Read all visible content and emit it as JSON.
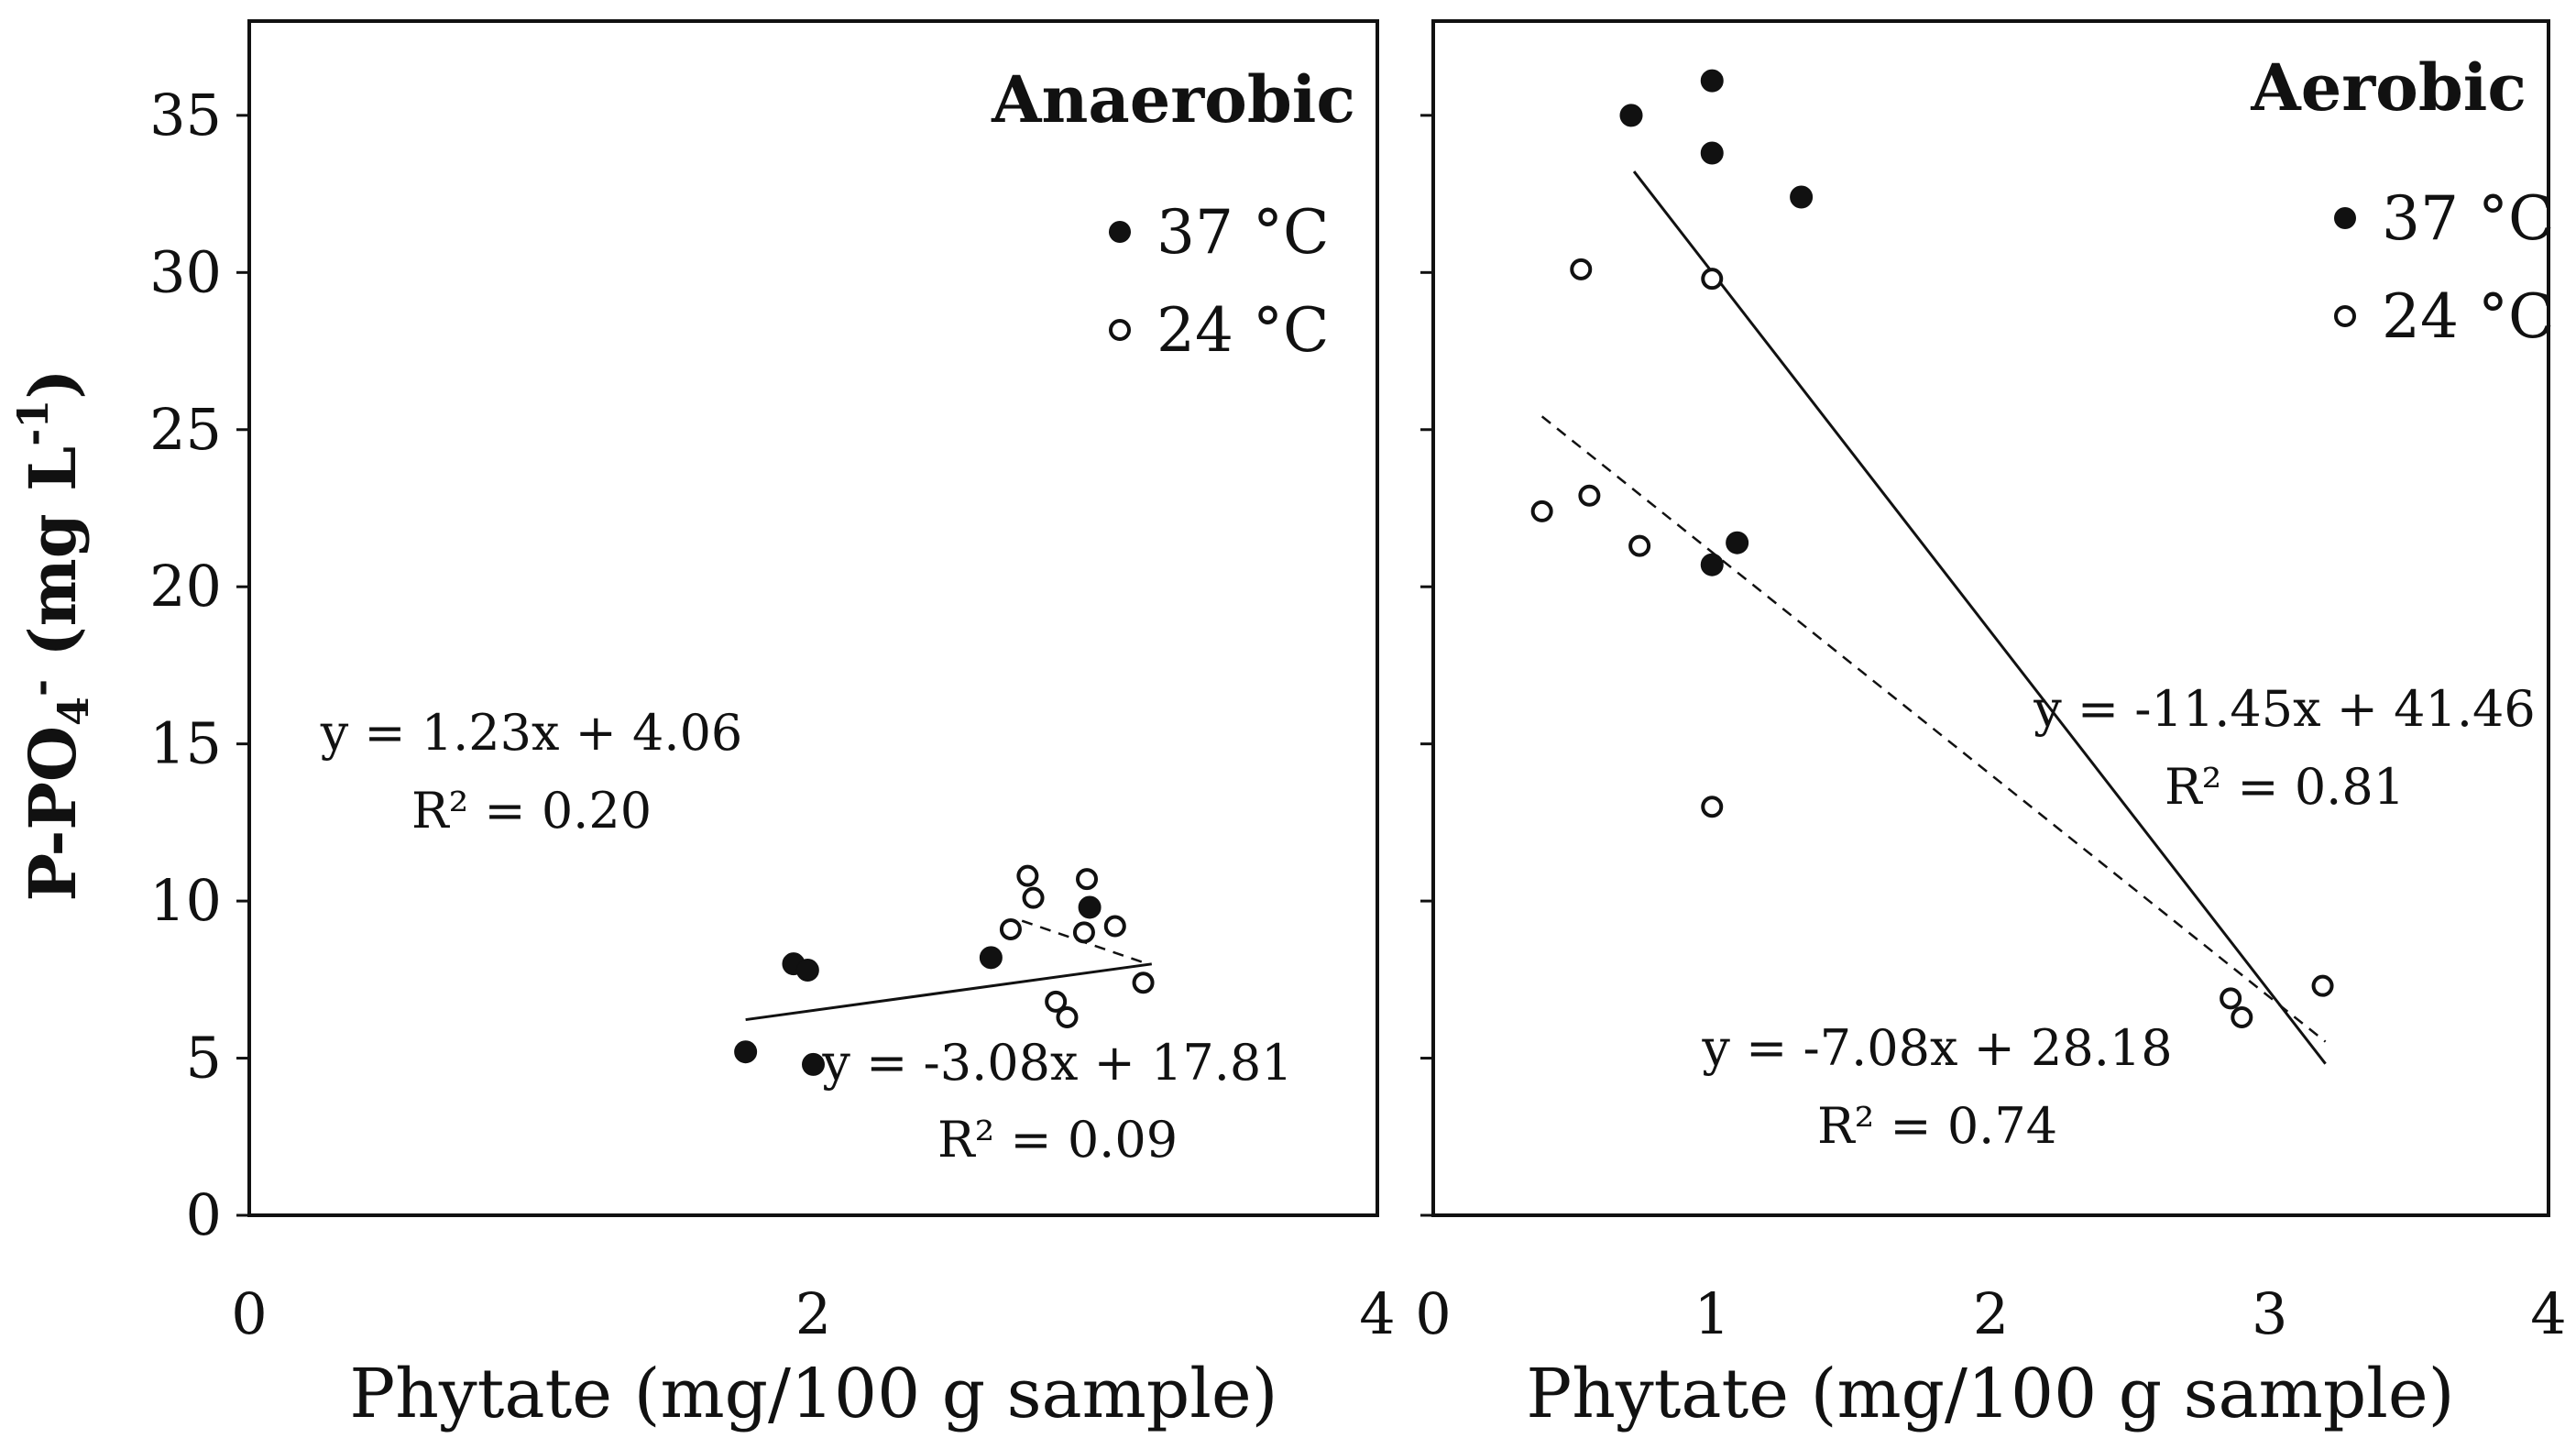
{
  "colors": {
    "ink": "#111111",
    "background": "#ffffff"
  },
  "ylabel": "P-PO4- (mg L-1)",
  "ylabel_parts": {
    "main": "P-PO",
    "sub": "4",
    "sup": "-",
    "unit_open": " (mg L",
    "unit_sup": "-1",
    "unit_close": ")"
  },
  "chart_data": [
    {
      "type": "scatter",
      "title": "Anaerobic",
      "xlabel": "Phytate (mg/100 g sample)",
      "ylabel": "P-PO4- (mg L-1)",
      "xlim": [
        0,
        4
      ],
      "ylim": [
        0,
        38
      ],
      "xticks": [
        "0",
        "2",
        "4"
      ],
      "yticks": [
        "0",
        "5",
        "10",
        "15",
        "20",
        "25",
        "30",
        "35"
      ],
      "legend": {
        "position": "top-right",
        "entries": [
          "37 °C",
          "24 °C"
        ]
      },
      "series": [
        {
          "name": "37 °C",
          "marker": "filled",
          "x": [
            1.76,
            1.93,
            1.98,
            2.0,
            2.63,
            2.98
          ],
          "y": [
            5.2,
            8.0,
            7.8,
            4.8,
            8.2,
            9.8
          ]
        },
        {
          "name": "24 °C",
          "marker": "open",
          "x": [
            2.7,
            2.76,
            2.78,
            2.86,
            2.9,
            2.96,
            2.97,
            3.07,
            3.17
          ],
          "y": [
            9.1,
            10.8,
            10.1,
            6.8,
            6.3,
            9.0,
            10.7,
            9.2,
            7.4
          ]
        }
      ],
      "trendlines": [
        {
          "series": "37 °C",
          "style": "solid",
          "slope": 1.23,
          "intercept": 4.06,
          "x_range": [
            1.76,
            3.2
          ],
          "equation": "y = 1.23x + 4.06",
          "r2": "R² = 0.20"
        },
        {
          "series": "24 °C",
          "style": "dashed",
          "slope": -3.08,
          "intercept": 17.81,
          "x_range": [
            2.74,
            3.17
          ],
          "equation": "y = -3.08x + 17.81",
          "r2": "R² = 0.09"
        }
      ]
    },
    {
      "type": "scatter",
      "title": "Aerobic",
      "xlabel": "Phytate (mg/100 g sample)",
      "ylabel": "",
      "xlim": [
        0,
        4
      ],
      "ylim": [
        0,
        38
      ],
      "xticks": [
        "0",
        "1",
        "2",
        "3",
        "4"
      ],
      "yticks": [],
      "legend": {
        "position": "top-right",
        "entries": [
          "37 °C",
          "24 °C"
        ]
      },
      "series": [
        {
          "name": "37 °C",
          "marker": "filled",
          "x": [
            0.71,
            1.0,
            1.0,
            1.32,
            1.0,
            1.09
          ],
          "y": [
            35.0,
            36.1,
            33.8,
            32.4,
            20.7,
            21.4
          ]
        },
        {
          "name": "24 °C",
          "marker": "open",
          "x": [
            0.53,
            1.0,
            0.39,
            0.56,
            0.74,
            1.0,
            2.86,
            2.9,
            3.19
          ],
          "y": [
            30.1,
            29.8,
            22.4,
            22.9,
            21.3,
            13.0,
            6.9,
            6.3,
            7.3
          ]
        }
      ],
      "trendlines": [
        {
          "series": "37 °C",
          "style": "solid",
          "slope": -11.45,
          "intercept": 41.46,
          "x_range": [
            0.72,
            3.2
          ],
          "equation": "y = -11.45x + 41.46",
          "r2": "R² = 0.81"
        },
        {
          "series": "24 °C",
          "style": "dashed",
          "slope": -7.08,
          "intercept": 28.18,
          "x_range": [
            0.39,
            3.2
          ],
          "equation": "y = -7.08x + 28.18",
          "r2": "R² = 0.74"
        }
      ]
    }
  ]
}
